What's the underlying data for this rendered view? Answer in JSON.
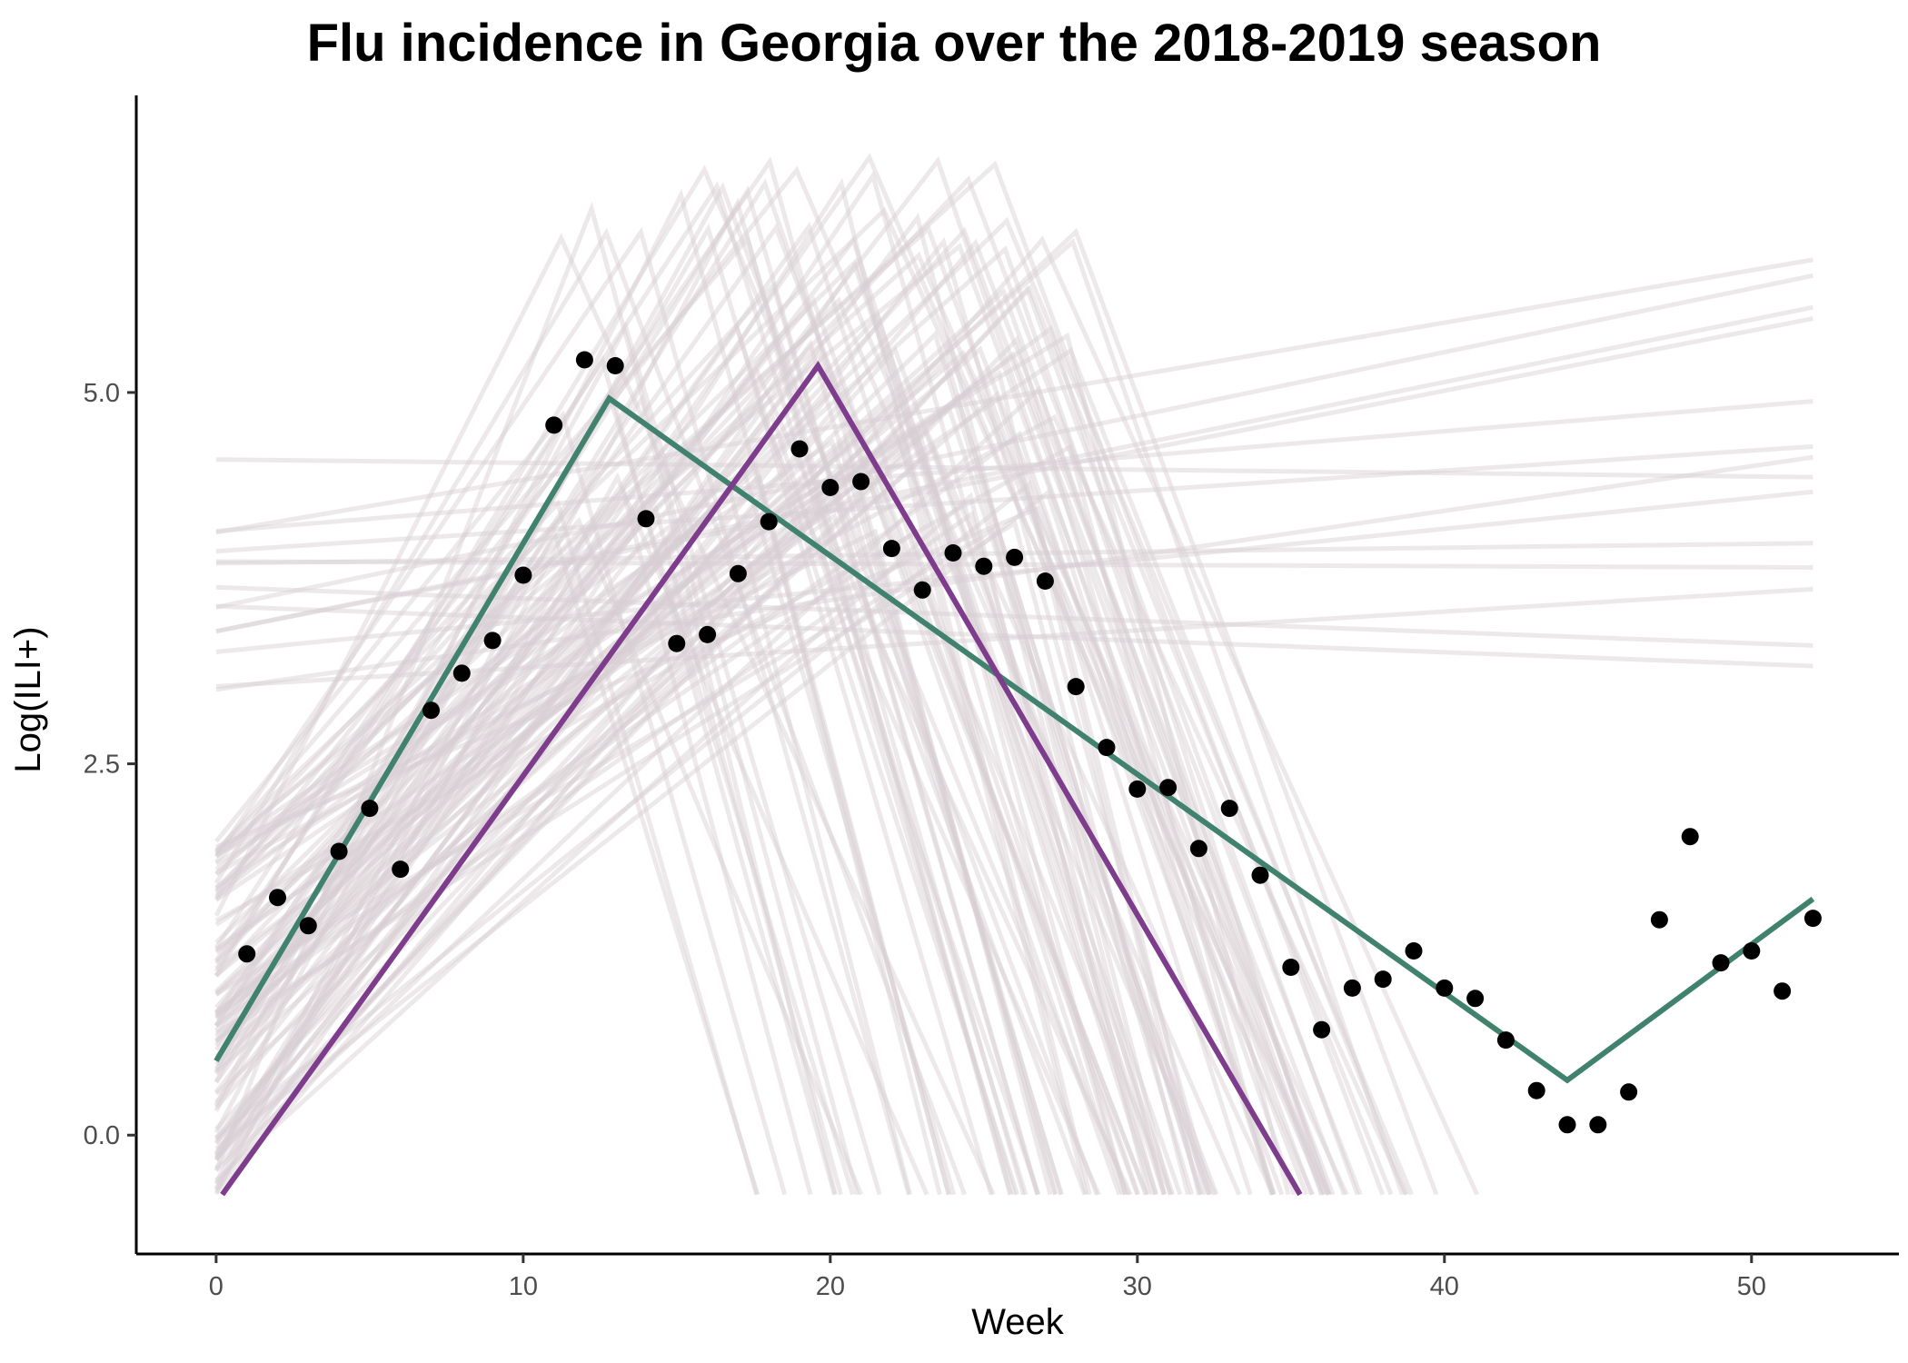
{
  "chart_data": {
    "type": "line",
    "title": "Flu incidence in Georgia over the 2018-2019 season",
    "xlabel": "Week",
    "ylabel": "Log(ILI+)",
    "xlim": [
      -2.6,
      54.8
    ],
    "ylim": [
      -0.8,
      7.0
    ],
    "x_ticks": [
      0,
      10,
      20,
      30,
      40,
      50
    ],
    "x_tick_labels": [
      "0",
      "10",
      "20",
      "30",
      "40",
      "50"
    ],
    "y_ticks": [
      0,
      2.5,
      5
    ],
    "y_tick_labels": [
      "0.0",
      "2.5",
      "5.0"
    ],
    "grid": false,
    "legend": "none",
    "colors": {
      "observed": "#000000",
      "fit_green": "#40826d",
      "fit_purple": "#7d3c8c",
      "samples": "#d8cfd2"
    },
    "observed": {
      "x": [
        1,
        2,
        3,
        4,
        5,
        6,
        7,
        8,
        9,
        10,
        11,
        12,
        13,
        14,
        15,
        16,
        17,
        18,
        19,
        20,
        21,
        22,
        23,
        24,
        25,
        26,
        27,
        28,
        29,
        30,
        31,
        32,
        33,
        34,
        35,
        36,
        37,
        38,
        39,
        40,
        41,
        42,
        43,
        44,
        45,
        46,
        47,
        48,
        49,
        50,
        51,
        52
      ],
      "y": [
        1.22,
        1.6,
        1.41,
        1.91,
        2.2,
        1.79,
        2.86,
        3.11,
        3.33,
        3.77,
        4.78,
        5.22,
        5.18,
        4.15,
        3.31,
        3.37,
        3.78,
        4.13,
        4.62,
        4.36,
        4.4,
        3.95,
        3.67,
        3.92,
        3.83,
        3.89,
        3.73,
        3.02,
        2.61,
        2.33,
        2.34,
        1.93,
        2.2,
        1.75,
        1.13,
        0.71,
        0.99,
        1.05,
        1.24,
        0.99,
        0.92,
        0.64,
        0.3,
        0.07,
        0.07,
        0.29,
        1.45,
        2.01,
        1.16,
        1.24,
        0.97,
        1.46
      ]
    },
    "series": [
      {
        "x": [
          0,
          12.8,
          44,
          52
        ],
        "y": [
          0.5,
          4.96,
          0.37,
          1.59
        ]
      },
      {
        "x": [
          0.2,
          19.6,
          35.3
        ],
        "y": [
          -0.4,
          5.18,
          -0.4
        ]
      }
    ]
  }
}
